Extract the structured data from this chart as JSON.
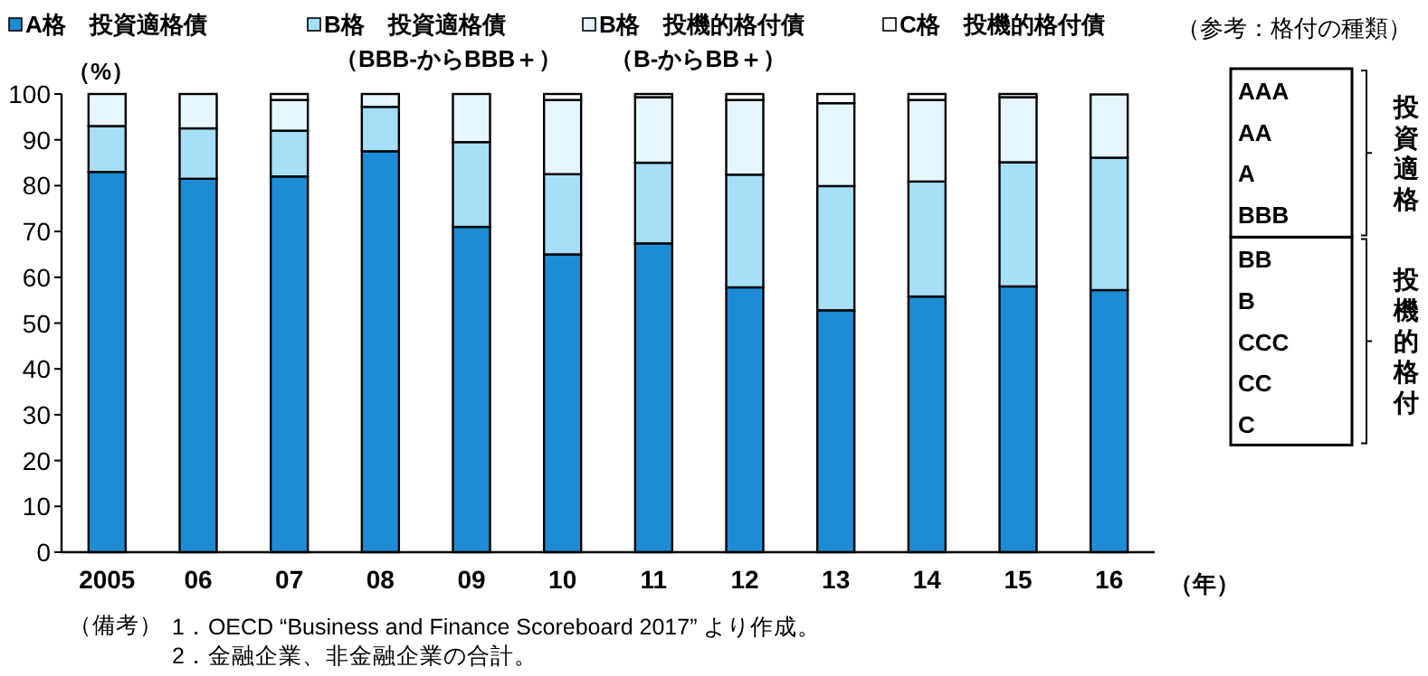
{
  "chart_data": [
    {
      "type": "bar",
      "stacked": true,
      "legend": "top",
      "categories": [
        "2005",
        "06",
        "07",
        "08",
        "09",
        "10",
        "11",
        "12",
        "13",
        "14",
        "15",
        "16"
      ],
      "series": [
        {
          "name": "A格　投資適格債",
          "color": "#1e8cd5",
          "values": [
            83,
            81.5,
            82,
            87.5,
            71,
            65,
            67.4,
            57.8,
            52.8,
            55.8,
            58,
            57.2
          ]
        },
        {
          "name": "B格　投資適格債（BBB-からBBB＋）",
          "color": "#a6dff7",
          "values": [
            10,
            11,
            10,
            9.7,
            18.5,
            17.5,
            17.6,
            24.6,
            27.1,
            25.1,
            27.1,
            28.9
          ]
        },
        {
          "name": "B格　投機的格付債（B-からBB＋）",
          "color": "#e6f6fd",
          "values": [
            7,
            7.5,
            6.7,
            2.8,
            10.5,
            16.2,
            14.3,
            16.3,
            18.1,
            17.8,
            14.2,
            13.8
          ]
        },
        {
          "name": "C格　投機的格付債",
          "color": "#ffffff",
          "values": [
            0,
            0,
            1.3,
            0,
            0,
            1.3,
            0.7,
            1.3,
            2,
            1.3,
            0.7,
            0
          ]
        }
      ],
      "ylim": [
        0,
        100
      ],
      "yticks": [
        0,
        10,
        20,
        30,
        40,
        50,
        60,
        70,
        80,
        90,
        100
      ],
      "ylabel": "（%）",
      "xlabel": "（年）",
      "annotations": [
        "（備考）",
        "1．OECD “Business and Finance Scoreboard 2017” より作成。",
        "2．金融企業、非金融企業の合計。"
      ]
    },
    {
      "type": "other",
      "title": "（参考：格付の種類）",
      "categories": [
        "AAA",
        "AA",
        "A",
        "BBB",
        "BB",
        "B",
        "CCC",
        "CC",
        "C"
      ],
      "annotations": [
        "投資適格",
        "投機的格付"
      ]
    }
  ]
}
